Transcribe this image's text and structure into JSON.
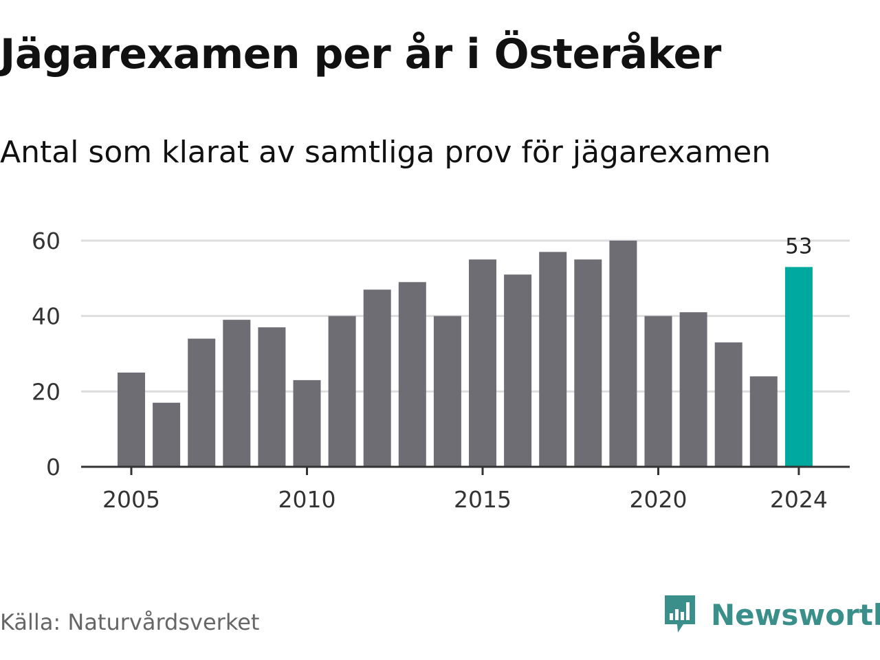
{
  "header": {
    "title": "Jägarexamen per år i Österåker",
    "subtitle": "Antal som klarat av samtliga prov för jägarexamen"
  },
  "footer": {
    "source": "Källa: Naturvårdsverket",
    "brand": "Newsworthy",
    "brand_icon": "newsworthy-logo-icon"
  },
  "colors": {
    "bar": "#6e6d73",
    "highlight": "#00a99d",
    "grid": "#dddddd",
    "axis": "#333333",
    "brand": "#3a8f8a"
  },
  "chart_data": {
    "type": "bar",
    "title": "Jägarexamen per år i Österåker",
    "subtitle": "Antal som klarat av samtliga prov för jägarexamen",
    "xlabel": "",
    "ylabel": "",
    "categories": [
      2005,
      2006,
      2007,
      2008,
      2009,
      2010,
      2011,
      2012,
      2013,
      2014,
      2015,
      2016,
      2017,
      2018,
      2019,
      2020,
      2021,
      2022,
      2023,
      2024
    ],
    "values": [
      25,
      17,
      34,
      39,
      37,
      23,
      40,
      47,
      49,
      40,
      55,
      51,
      57,
      55,
      60,
      40,
      41,
      33,
      24,
      53
    ],
    "ylim": [
      0,
      60
    ],
    "yticks": [
      0,
      20,
      40,
      60
    ],
    "xticks": [
      2005,
      2010,
      2015,
      2020,
      2024
    ],
    "highlight_category": 2024,
    "annotations": [
      {
        "category": 2024,
        "text": "53"
      }
    ],
    "grid": true,
    "legend": "none"
  }
}
